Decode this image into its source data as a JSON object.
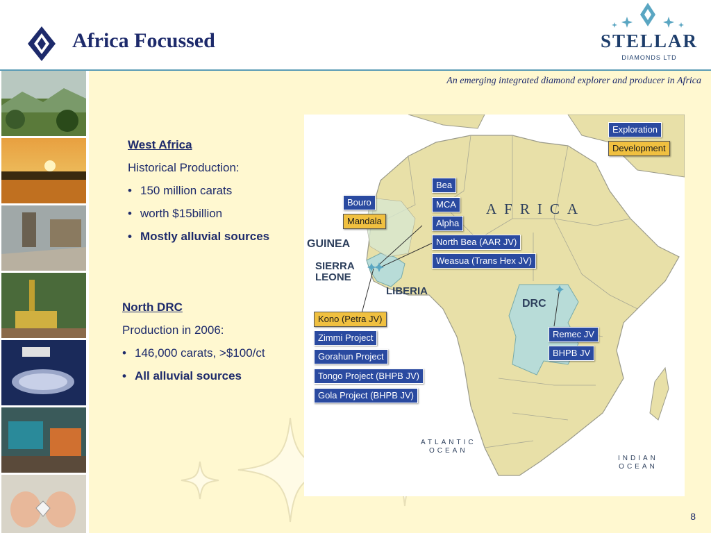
{
  "header": {
    "title": "Africa Focussed",
    "tagline": "An emerging integrated diamond explorer and producer in Africa",
    "logo": {
      "name": "STELLAR",
      "sub": "DIAMONDS LTD"
    }
  },
  "west_africa": {
    "heading": "West Africa",
    "lines": [
      "Historical Production:",
      "150 million carats",
      "worth $15billion",
      "Mostly alluvial sources"
    ]
  },
  "north_drc": {
    "heading": "North DRC",
    "lines": [
      "Production in 2006:",
      "146,000 carats, >$100/ct",
      "All alluvial sources"
    ]
  },
  "map": {
    "legend": {
      "exploration": "Exploration",
      "development": "Development"
    },
    "africa": "AFRICA",
    "regions": {
      "guinea": "GUINEA",
      "sierra_leone": [
        "SIERRA",
        "LEONE"
      ],
      "liberia": "LIBERIA",
      "drc": "DRC"
    },
    "oceans": {
      "atlantic": [
        "ATLANTIC",
        "OCEAN"
      ],
      "indian": [
        "INDIAN",
        "OCEAN"
      ]
    },
    "guinea_projects": {
      "bouro": "Bouro",
      "mandala": "Mandala"
    },
    "liberia_projects": {
      "bea": "Bea",
      "mca": "MCA",
      "alpha": "Alpha",
      "north_bea": "North Bea (AAR JV)",
      "weasua": "Weasua (Trans Hex JV)"
    },
    "sierra_leone_projects": {
      "kono": "Kono (Petra JV)",
      "zimmi": "Zimmi Project",
      "gorahun": "Gorahun Project",
      "tongo": "Tongo Project (BHPB JV)",
      "gola": "Gola Project (BHPB JV)"
    },
    "drc_projects": {
      "remec": "Remec JV",
      "bhpb": "BHPB JV"
    }
  },
  "page_number": "8",
  "colors": {
    "navy": "#1d2a6b",
    "teal": "#5a9bb5",
    "exploration": "#2a4aa0",
    "development": "#f0c040",
    "background": "#fff8d0"
  },
  "photos": [
    "forest-hills",
    "river-sunset",
    "processing-plant",
    "drilling-rig",
    "diamond-parcel",
    "wash-plant",
    "rough-diamond-in-hand"
  ]
}
